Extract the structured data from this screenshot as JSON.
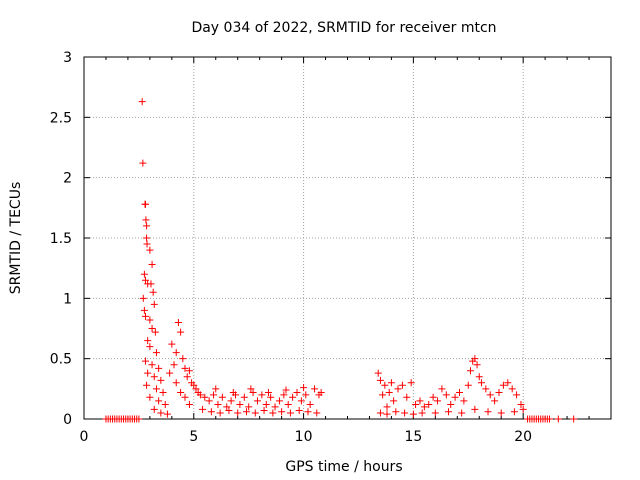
{
  "chart_data": {
    "type": "scatter",
    "title": "Day 034 of 2022, SRMTID for receiver mtcn",
    "xlabel": "GPS time / hours",
    "ylabel": "SRMTID / TECUs",
    "xlim": [
      0,
      24
    ],
    "ylim": [
      0,
      3
    ],
    "xticks": [
      0,
      5,
      10,
      15,
      20
    ],
    "yticks": [
      0,
      0.5,
      1,
      1.5,
      2,
      2.5,
      3
    ],
    "xtick_labels": [
      "0",
      "5",
      "10",
      "15",
      "20"
    ],
    "ytick_labels": [
      "0",
      "0.5",
      "1",
      "1.5",
      "2",
      "2.5",
      "3"
    ],
    "grid": true,
    "marker": "+",
    "series": [
      {
        "name": "SRMTID",
        "color": "#ff0000",
        "points": [
          [
            1.0,
            0
          ],
          [
            1.1,
            0
          ],
          [
            1.2,
            0
          ],
          [
            1.3,
            0
          ],
          [
            1.4,
            0
          ],
          [
            1.5,
            0
          ],
          [
            1.6,
            0
          ],
          [
            1.7,
            0
          ],
          [
            1.8,
            0
          ],
          [
            1.9,
            0
          ],
          [
            2.0,
            0
          ],
          [
            2.1,
            0
          ],
          [
            2.2,
            0
          ],
          [
            2.3,
            0
          ],
          [
            2.4,
            0
          ],
          [
            2.5,
            0
          ],
          [
            2.65,
            2.63
          ],
          [
            2.68,
            2.12
          ],
          [
            2.78,
            1.78
          ],
          [
            2.8,
            1.78
          ],
          [
            2.82,
            1.65
          ],
          [
            2.85,
            1.6
          ],
          [
            2.85,
            1.5
          ],
          [
            2.87,
            1.45
          ],
          [
            2.75,
            1.2
          ],
          [
            2.8,
            1.15
          ],
          [
            2.9,
            1.12
          ],
          [
            2.7,
            1.0
          ],
          [
            2.75,
            0.9
          ],
          [
            2.8,
            0.85
          ],
          [
            3.0,
            1.4
          ],
          [
            3.1,
            1.28
          ],
          [
            3.05,
            1.12
          ],
          [
            3.15,
            1.05
          ],
          [
            3.2,
            0.95
          ],
          [
            3.0,
            0.82
          ],
          [
            3.1,
            0.75
          ],
          [
            3.25,
            0.72
          ],
          [
            2.9,
            0.65
          ],
          [
            3.0,
            0.6
          ],
          [
            3.3,
            0.55
          ],
          [
            2.8,
            0.48
          ],
          [
            3.1,
            0.45
          ],
          [
            3.4,
            0.42
          ],
          [
            2.9,
            0.38
          ],
          [
            3.2,
            0.35
          ],
          [
            3.5,
            0.32
          ],
          [
            2.85,
            0.28
          ],
          [
            3.3,
            0.25
          ],
          [
            3.6,
            0.22
          ],
          [
            3.0,
            0.18
          ],
          [
            3.4,
            0.15
          ],
          [
            3.7,
            0.12
          ],
          [
            3.2,
            0.08
          ],
          [
            3.5,
            0.05
          ],
          [
            3.8,
            0.04
          ],
          [
            4.0,
            0.62
          ],
          [
            4.2,
            0.55
          ],
          [
            4.3,
            0.8
          ],
          [
            4.4,
            0.72
          ],
          [
            4.5,
            0.5
          ],
          [
            4.1,
            0.45
          ],
          [
            4.6,
            0.42
          ],
          [
            3.9,
            0.38
          ],
          [
            4.7,
            0.35
          ],
          [
            4.8,
            0.4
          ],
          [
            4.2,
            0.3
          ],
          [
            4.9,
            0.3
          ],
          [
            5.0,
            0.28
          ],
          [
            4.4,
            0.22
          ],
          [
            5.1,
            0.25
          ],
          [
            4.6,
            0.18
          ],
          [
            5.2,
            0.22
          ],
          [
            4.8,
            0.12
          ],
          [
            5.3,
            0.2
          ],
          [
            5.5,
            0.18
          ],
          [
            5.7,
            0.15
          ],
          [
            5.9,
            0.2
          ],
          [
            6.1,
            0.12
          ],
          [
            6.3,
            0.18
          ],
          [
            6.5,
            0.1
          ],
          [
            6.7,
            0.15
          ],
          [
            6.9,
            0.2
          ],
          [
            7.1,
            0.12
          ],
          [
            7.3,
            0.18
          ],
          [
            7.5,
            0.1
          ],
          [
            7.7,
            0.22
          ],
          [
            7.9,
            0.15
          ],
          [
            8.1,
            0.2
          ],
          [
            8.3,
            0.12
          ],
          [
            8.5,
            0.18
          ],
          [
            8.7,
            0.1
          ],
          [
            8.9,
            0.15
          ],
          [
            9.1,
            0.2
          ],
          [
            9.3,
            0.12
          ],
          [
            9.5,
            0.18
          ],
          [
            9.7,
            0.22
          ],
          [
            9.9,
            0.15
          ],
          [
            10.1,
            0.2
          ],
          [
            10.3,
            0.12
          ],
          [
            10.5,
            0.25
          ],
          [
            10.7,
            0.2
          ],
          [
            5.4,
            0.08
          ],
          [
            5.8,
            0.06
          ],
          [
            6.2,
            0.05
          ],
          [
            6.6,
            0.07
          ],
          [
            7.0,
            0.05
          ],
          [
            7.4,
            0.06
          ],
          [
            7.8,
            0.05
          ],
          [
            8.2,
            0.07
          ],
          [
            8.6,
            0.05
          ],
          [
            9.0,
            0.06
          ],
          [
            9.4,
            0.05
          ],
          [
            9.8,
            0.07
          ],
          [
            10.2,
            0.06
          ],
          [
            10.6,
            0.05
          ],
          [
            6.0,
            0.25
          ],
          [
            6.8,
            0.22
          ],
          [
            7.6,
            0.25
          ],
          [
            8.4,
            0.22
          ],
          [
            9.2,
            0.24
          ],
          [
            10.0,
            0.26
          ],
          [
            10.8,
            0.22
          ],
          [
            13.4,
            0.38
          ],
          [
            13.5,
            0.32
          ],
          [
            13.6,
            0.2
          ],
          [
            13.7,
            0.28
          ],
          [
            13.8,
            0.1
          ],
          [
            13.9,
            0.22
          ],
          [
            14.0,
            0.3
          ],
          [
            14.1,
            0.15
          ],
          [
            14.3,
            0.25
          ],
          [
            14.5,
            0.28
          ],
          [
            14.7,
            0.18
          ],
          [
            14.9,
            0.3
          ],
          [
            15.1,
            0.12
          ],
          [
            15.3,
            0.15
          ],
          [
            15.5,
            0.1
          ],
          [
            13.5,
            0.05
          ],
          [
            13.8,
            0.04
          ],
          [
            14.2,
            0.06
          ],
          [
            14.6,
            0.05
          ],
          [
            15.0,
            0.04
          ],
          [
            15.4,
            0.05
          ],
          [
            15.7,
            0.12
          ],
          [
            15.9,
            0.18
          ],
          [
            16.1,
            0.15
          ],
          [
            16.3,
            0.25
          ],
          [
            16.5,
            0.2
          ],
          [
            16.7,
            0.12
          ],
          [
            16.9,
            0.18
          ],
          [
            17.1,
            0.22
          ],
          [
            17.3,
            0.15
          ],
          [
            17.5,
            0.28
          ],
          [
            17.6,
            0.4
          ],
          [
            17.7,
            0.48
          ],
          [
            17.8,
            0.5
          ],
          [
            17.9,
            0.45
          ],
          [
            18.0,
            0.35
          ],
          [
            18.1,
            0.3
          ],
          [
            18.3,
            0.25
          ],
          [
            18.5,
            0.2
          ],
          [
            18.7,
            0.15
          ],
          [
            18.9,
            0.22
          ],
          [
            19.1,
            0.28
          ],
          [
            19.3,
            0.3
          ],
          [
            19.5,
            0.25
          ],
          [
            19.7,
            0.2
          ],
          [
            19.9,
            0.12
          ],
          [
            20.0,
            0.08
          ],
          [
            16.0,
            0.05
          ],
          [
            16.6,
            0.06
          ],
          [
            17.2,
            0.05
          ],
          [
            17.8,
            0.08
          ],
          [
            18.4,
            0.06
          ],
          [
            19.0,
            0.05
          ],
          [
            19.6,
            0.06
          ],
          [
            20.2,
            0
          ],
          [
            20.3,
            0
          ],
          [
            20.4,
            0
          ],
          [
            20.5,
            0
          ],
          [
            20.6,
            0
          ],
          [
            20.7,
            0
          ],
          [
            20.8,
            0
          ],
          [
            20.9,
            0
          ],
          [
            21.0,
            0
          ],
          [
            21.1,
            0
          ],
          [
            21.2,
            0
          ],
          [
            21.6,
            0
          ],
          [
            22.3,
            0
          ]
        ]
      }
    ]
  }
}
